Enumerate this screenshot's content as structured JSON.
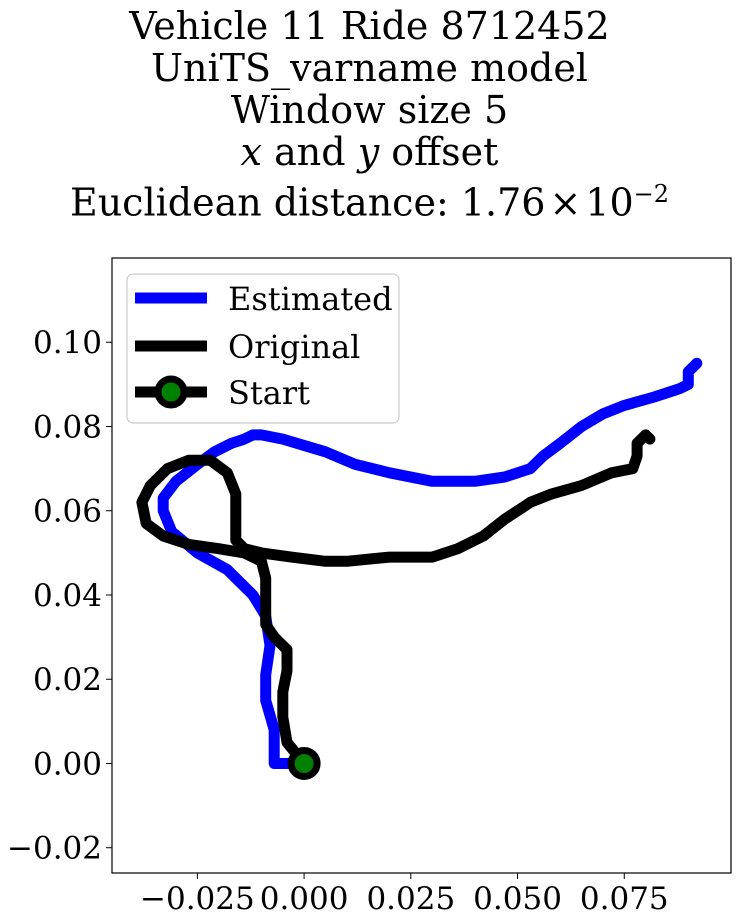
{
  "chart_data": {
    "type": "line",
    "title_lines": [
      "Vehicle 11 Ride 8712452",
      "UniTS_varname model",
      "Window size 5",
      "x and y offset",
      "Euclidean distance: 1.76 × 10−2"
    ],
    "title_parts": {
      "line4_x": "x",
      "line4_mid": " and ",
      "line4_y": "y",
      "line4_end": " offset",
      "line5_prefix": "Euclidean distance: ",
      "line5_mantissa": "1.76",
      "line5_times": "×",
      "line5_base": "10",
      "line5_exp": "−2"
    },
    "xlim": [
      -0.045,
      0.1
    ],
    "ylim": [
      -0.026,
      0.12
    ],
    "xticks": [
      -0.025,
      0.0,
      0.025,
      0.05,
      0.075
    ],
    "xtick_labels": [
      "−0.025",
      "0.000",
      "0.025",
      "0.050",
      "0.075"
    ],
    "yticks": [
      -0.02,
      0.0,
      0.02,
      0.04,
      0.06,
      0.08,
      0.1
    ],
    "ytick_labels": [
      "−0.02",
      "0.00",
      "0.02",
      "0.04",
      "0.06",
      "0.08",
      "0.10"
    ],
    "legend_position": "upper-left",
    "legend": [
      "Estimated",
      "Original",
      "Start"
    ],
    "series": [
      {
        "name": "Estimated",
        "color": "#0000ff",
        "x": [
          0.0,
          -0.007,
          -0.007,
          -0.009,
          -0.009,
          -0.008,
          -0.009,
          -0.012,
          -0.018,
          -0.025,
          -0.031,
          -0.033,
          -0.033,
          -0.03,
          -0.025,
          -0.021,
          -0.017,
          -0.014,
          -0.012,
          -0.01,
          -0.005,
          0.005,
          0.012,
          0.02,
          0.03,
          0.04,
          0.047,
          0.053,
          0.056,
          0.06,
          0.065,
          0.07,
          0.075,
          0.082,
          0.088,
          0.09,
          0.09,
          0.092
        ],
        "y": [
          0.0,
          0.0,
          0.008,
          0.015,
          0.021,
          0.028,
          0.035,
          0.04,
          0.046,
          0.05,
          0.055,
          0.06,
          0.063,
          0.067,
          0.071,
          0.074,
          0.076,
          0.077,
          0.078,
          0.078,
          0.077,
          0.074,
          0.071,
          0.069,
          0.067,
          0.067,
          0.068,
          0.07,
          0.073,
          0.076,
          0.08,
          0.083,
          0.085,
          0.087,
          0.089,
          0.09,
          0.093,
          0.095
        ]
      },
      {
        "name": "Original",
        "color": "#000000",
        "x": [
          0.0,
          -0.004,
          -0.005,
          -0.005,
          -0.004,
          -0.004,
          -0.007,
          -0.009,
          -0.009,
          -0.009,
          -0.01,
          -0.014,
          -0.02,
          -0.027,
          -0.033,
          -0.037,
          -0.038,
          -0.036,
          -0.032,
          -0.027,
          -0.022,
          -0.018,
          -0.016,
          -0.016,
          -0.016,
          -0.014,
          -0.01,
          -0.003,
          0.005,
          0.01,
          0.02,
          0.03,
          0.036,
          0.042,
          0.047,
          0.053,
          0.058,
          0.065,
          0.072,
          0.077,
          0.078,
          0.078,
          0.08,
          0.081
        ],
        "y": [
          0.0,
          0.005,
          0.011,
          0.017,
          0.022,
          0.027,
          0.03,
          0.033,
          0.038,
          0.044,
          0.048,
          0.05,
          0.051,
          0.052,
          0.054,
          0.057,
          0.062,
          0.066,
          0.07,
          0.072,
          0.072,
          0.069,
          0.064,
          0.058,
          0.053,
          0.051,
          0.05,
          0.049,
          0.048,
          0.048,
          0.049,
          0.049,
          0.051,
          0.054,
          0.058,
          0.062,
          0.064,
          0.066,
          0.069,
          0.07,
          0.073,
          0.076,
          0.078,
          0.077
        ]
      }
    ],
    "start_point": {
      "x": 0.0,
      "y": 0.0,
      "marker_face": "#008000",
      "marker_edge": "#000000"
    }
  }
}
